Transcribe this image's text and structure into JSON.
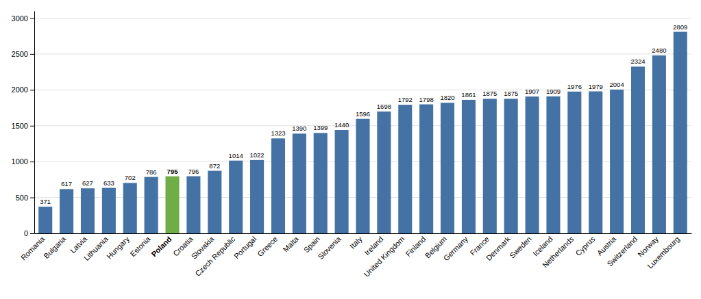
{
  "chart_data": {
    "type": "bar",
    "categories": [
      "Romania",
      "Bulgaria",
      "Latvia",
      "Lithuania",
      "Hungary",
      "Estonia",
      "Poland",
      "Croatia",
      "Slovakia",
      "Czech Republic",
      "Portugal",
      "Greece",
      "Malta",
      "Spain",
      "Slovenia",
      "Italy",
      "Ireland",
      "United Kingdom",
      "Finland",
      "Belgium",
      "Germany",
      "France",
      "Denmark",
      "Sweden",
      "Iceland",
      "Netherlands",
      "Cyprus",
      "Austria",
      "Switzerland",
      "Norway",
      "Luxembourg"
    ],
    "values": [
      371,
      617,
      627,
      633,
      702,
      786,
      795,
      796,
      872,
      1014,
      1022,
      1323,
      1390,
      1399,
      1440,
      1596,
      1698,
      1792,
      1798,
      1820,
      1861,
      1875,
      1875,
      1907,
      1909,
      1976,
      1979,
      2004,
      2324,
      2480,
      2809
    ],
    "colors": [
      "#4472a4",
      "#4472a4",
      "#4472a4",
      "#4472a4",
      "#4472a4",
      "#4472a4",
      "#70ad47",
      "#4472a4",
      "#4472a4",
      "#4472a4",
      "#4472a4",
      "#4472a4",
      "#4472a4",
      "#4472a4",
      "#4472a4",
      "#4472a4",
      "#4472a4",
      "#4472a4",
      "#4472a4",
      "#4472a4",
      "#4472a4",
      "#4472a4",
      "#4472a4",
      "#4472a4",
      "#4472a4",
      "#4472a4",
      "#4472a4",
      "#4472a4",
      "#4472a4",
      "#4472a4",
      "#4472a4"
    ],
    "ylim": [
      0,
      3100
    ],
    "yticks": [
      0,
      500,
      1000,
      1500,
      2000,
      2500,
      3000
    ],
    "grid": true,
    "data_labels": true
  }
}
